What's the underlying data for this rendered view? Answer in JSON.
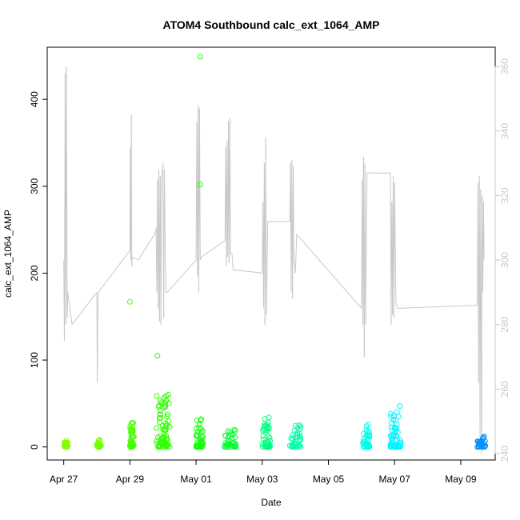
{
  "chart_data": {
    "type": "scatter",
    "title": "ATOM4 Southbound calc_ext_1064_AMP",
    "xlabel": "Date",
    "ylabel": "calc_ext_1064_AMP",
    "x_tick_labels": [
      "Apr 27",
      "Apr 29",
      "May 01",
      "May 03",
      "May 05",
      "May 07",
      "May 09"
    ],
    "x_tick_dates": [
      "2024-04-27",
      "2024-04-29",
      "2024-05-01",
      "2024-05-03",
      "2024-05-05",
      "2024-05-07",
      "2024-05-09"
    ],
    "xlim": [
      "2024-04-26T12:00",
      "2024-05-10T01:00"
    ],
    "ylim": [
      -15,
      460
    ],
    "y_ticks": [
      0,
      100,
      200,
      300,
      400
    ],
    "y2lim": [
      238,
      366
    ],
    "y2_ticks": [
      240,
      260,
      280,
      300,
      320,
      340,
      360
    ],
    "grid": false,
    "legend": "none",
    "scatter_clusters": [
      {
        "start": "2024-04-27T00:00",
        "end": "2024-04-27T03:00",
        "max": 7,
        "color": "#80ff00"
      },
      {
        "start": "2024-04-28T00:00",
        "end": "2024-04-28T03:00",
        "max": 8,
        "color": "#73ff00"
      },
      {
        "start": "2024-04-29T00:00",
        "end": "2024-04-29T03:00",
        "max": 28,
        "color": "#48ff00"
      },
      {
        "start": "2024-04-29T19:00",
        "end": "2024-04-30T05:00",
        "max": 60,
        "color": "#2eff00"
      },
      {
        "start": "2024-05-01T00:00",
        "end": "2024-05-01T05:00",
        "max": 32,
        "color": "#14ff0a"
      },
      {
        "start": "2024-05-01T20:00",
        "end": "2024-05-02T05:00",
        "max": 20,
        "color": "#00ff30"
      },
      {
        "start": "2024-05-03T00:00",
        "end": "2024-05-03T06:00",
        "max": 34,
        "color": "#00ff80"
      },
      {
        "start": "2024-05-03T20:00",
        "end": "2024-05-04T04:00",
        "max": 25,
        "color": "#00ffa8"
      },
      {
        "start": "2024-05-06T01:00",
        "end": "2024-05-06T06:00",
        "max": 26,
        "color": "#00ffe8"
      },
      {
        "start": "2024-05-06T21:00",
        "end": "2024-05-07T05:00",
        "max": 47,
        "color": "#00f4ff"
      },
      {
        "start": "2024-05-09T12:00",
        "end": "2024-05-09T18:00",
        "max": 12,
        "color": "#0090ff"
      }
    ],
    "scatter_outliers": [
      {
        "x": "2024-05-01T03:00",
        "y": 449,
        "color": "#14ff0a"
      },
      {
        "x": "2024-05-01T03:00",
        "y": 302,
        "color": "#14ff0a"
      },
      {
        "x": "2024-04-29T00:00",
        "y": 167,
        "color": "#48ff00"
      },
      {
        "x": "2024-04-29T20:00",
        "y": 105,
        "color": "#2eff00"
      }
    ],
    "line_series_right_axis": {
      "color": "#c8c8c8",
      "points": [
        [
          "2024-04-27T00:00",
          300
        ],
        [
          "2024-04-27T00:30",
          275
        ],
        [
          "2024-04-27T01:00",
          358
        ],
        [
          "2024-04-27T01:30",
          280
        ],
        [
          "2024-04-27T02:00",
          360
        ],
        [
          "2024-04-27T02:30",
          282
        ],
        [
          "2024-04-27T03:00",
          290
        ],
        [
          "2024-04-27T06:00",
          280
        ],
        [
          "2024-04-28T00:00",
          290
        ],
        [
          "2024-04-28T00:20",
          262
        ],
        [
          "2024-04-28T00:40",
          282
        ],
        [
          "2024-04-28T01:00",
          290
        ],
        [
          "2024-04-29T00:00",
          303
        ],
        [
          "2024-04-29T00:20",
          335
        ],
        [
          "2024-04-29T00:40",
          300
        ],
        [
          "2024-04-29T01:00",
          345
        ],
        [
          "2024-04-29T01:20",
          298
        ],
        [
          "2024-04-29T01:40",
          301
        ],
        [
          "2024-04-29T06:00",
          300
        ],
        [
          "2024-04-29T18:00",
          308
        ],
        [
          "2024-04-29T19:00",
          310
        ],
        [
          "2024-04-29T19:30",
          290
        ],
        [
          "2024-04-29T20:00",
          325
        ],
        [
          "2024-04-29T20:30",
          285
        ],
        [
          "2024-04-29T21:00",
          328
        ],
        [
          "2024-04-29T21:30",
          281
        ],
        [
          "2024-04-29T22:00",
          326
        ],
        [
          "2024-04-29T22:30",
          280
        ],
        [
          "2024-04-29T23:00",
          324
        ],
        [
          "2024-04-30T00:00",
          330
        ],
        [
          "2024-04-30T00:30",
          282
        ],
        [
          "2024-04-30T01:00",
          328
        ],
        [
          "2024-04-30T02:00",
          290
        ],
        [
          "2024-04-30T03:00",
          290
        ],
        [
          "2024-05-01T00:00",
          300
        ],
        [
          "2024-05-01T00:30",
          343
        ],
        [
          "2024-05-01T01:00",
          295
        ],
        [
          "2024-05-01T01:30",
          348
        ],
        [
          "2024-05-01T02:00",
          290
        ],
        [
          "2024-05-01T02:30",
          347
        ],
        [
          "2024-05-01T03:00",
          300
        ],
        [
          "2024-05-01T04:00",
          301
        ],
        [
          "2024-05-01T21:00",
          306
        ],
        [
          "2024-05-01T21:30",
          335
        ],
        [
          "2024-05-01T22:00",
          298
        ],
        [
          "2024-05-01T22:30",
          337
        ],
        [
          "2024-05-01T23:00",
          301
        ],
        [
          "2024-05-01T23:30",
          343
        ],
        [
          "2024-05-02T00:00",
          299
        ],
        [
          "2024-05-02T00:30",
          344
        ],
        [
          "2024-05-02T01:00",
          302
        ],
        [
          "2024-05-02T02:00",
          302
        ],
        [
          "2024-05-02T03:00",
          297
        ],
        [
          "2024-05-03T00:00",
          296
        ],
        [
          "2024-05-03T00:30",
          318
        ],
        [
          "2024-05-03T01:00",
          285
        ],
        [
          "2024-05-03T01:30",
          330
        ],
        [
          "2024-05-03T02:00",
          280
        ],
        [
          "2024-05-03T02:30",
          338
        ],
        [
          "2024-05-03T03:00",
          283
        ],
        [
          "2024-05-03T04:00",
          312
        ],
        [
          "2024-05-03T20:00",
          312
        ],
        [
          "2024-05-03T20:30",
          330
        ],
        [
          "2024-05-03T21:00",
          290
        ],
        [
          "2024-05-03T21:30",
          331
        ],
        [
          "2024-05-03T22:00",
          288
        ],
        [
          "2024-05-03T22:30",
          329
        ],
        [
          "2024-05-03T23:00",
          300
        ],
        [
          "2024-05-04T00:00",
          296
        ],
        [
          "2024-05-04T01:00",
          308
        ],
        [
          "2024-05-06T00:00",
          285
        ],
        [
          "2024-05-06T00:30",
          325
        ],
        [
          "2024-05-06T01:00",
          280
        ],
        [
          "2024-05-06T01:30",
          332
        ],
        [
          "2024-05-06T02:00",
          270
        ],
        [
          "2024-05-06T02:30",
          330
        ],
        [
          "2024-05-06T03:00",
          280
        ],
        [
          "2024-05-06T04:00",
          327
        ],
        [
          "2024-05-06T06:00",
          327
        ],
        [
          "2024-05-06T21:00",
          327
        ],
        [
          "2024-05-06T21:30",
          280
        ],
        [
          "2024-05-06T22:00",
          318
        ],
        [
          "2024-05-06T22:30",
          283
        ],
        [
          "2024-05-06T23:00",
          326
        ],
        [
          "2024-05-06T23:30",
          282
        ],
        [
          "2024-05-07T00:00",
          324
        ],
        [
          "2024-05-07T01:00",
          287
        ],
        [
          "2024-05-07T02:00",
          285
        ],
        [
          "2024-05-09T12:00",
          286
        ],
        [
          "2024-05-09T12:30",
          324
        ],
        [
          "2024-05-09T13:00",
          262
        ],
        [
          "2024-05-09T13:30",
          326
        ],
        [
          "2024-05-09T14:00",
          245
        ],
        [
          "2024-05-09T14:30",
          322
        ],
        [
          "2024-05-09T15:00",
          240
        ],
        [
          "2024-05-09T15:30",
          320
        ],
        [
          "2024-05-09T16:00",
          290
        ],
        [
          "2024-05-09T16:30",
          318
        ],
        [
          "2024-05-09T17:00",
          300
        ]
      ]
    }
  }
}
